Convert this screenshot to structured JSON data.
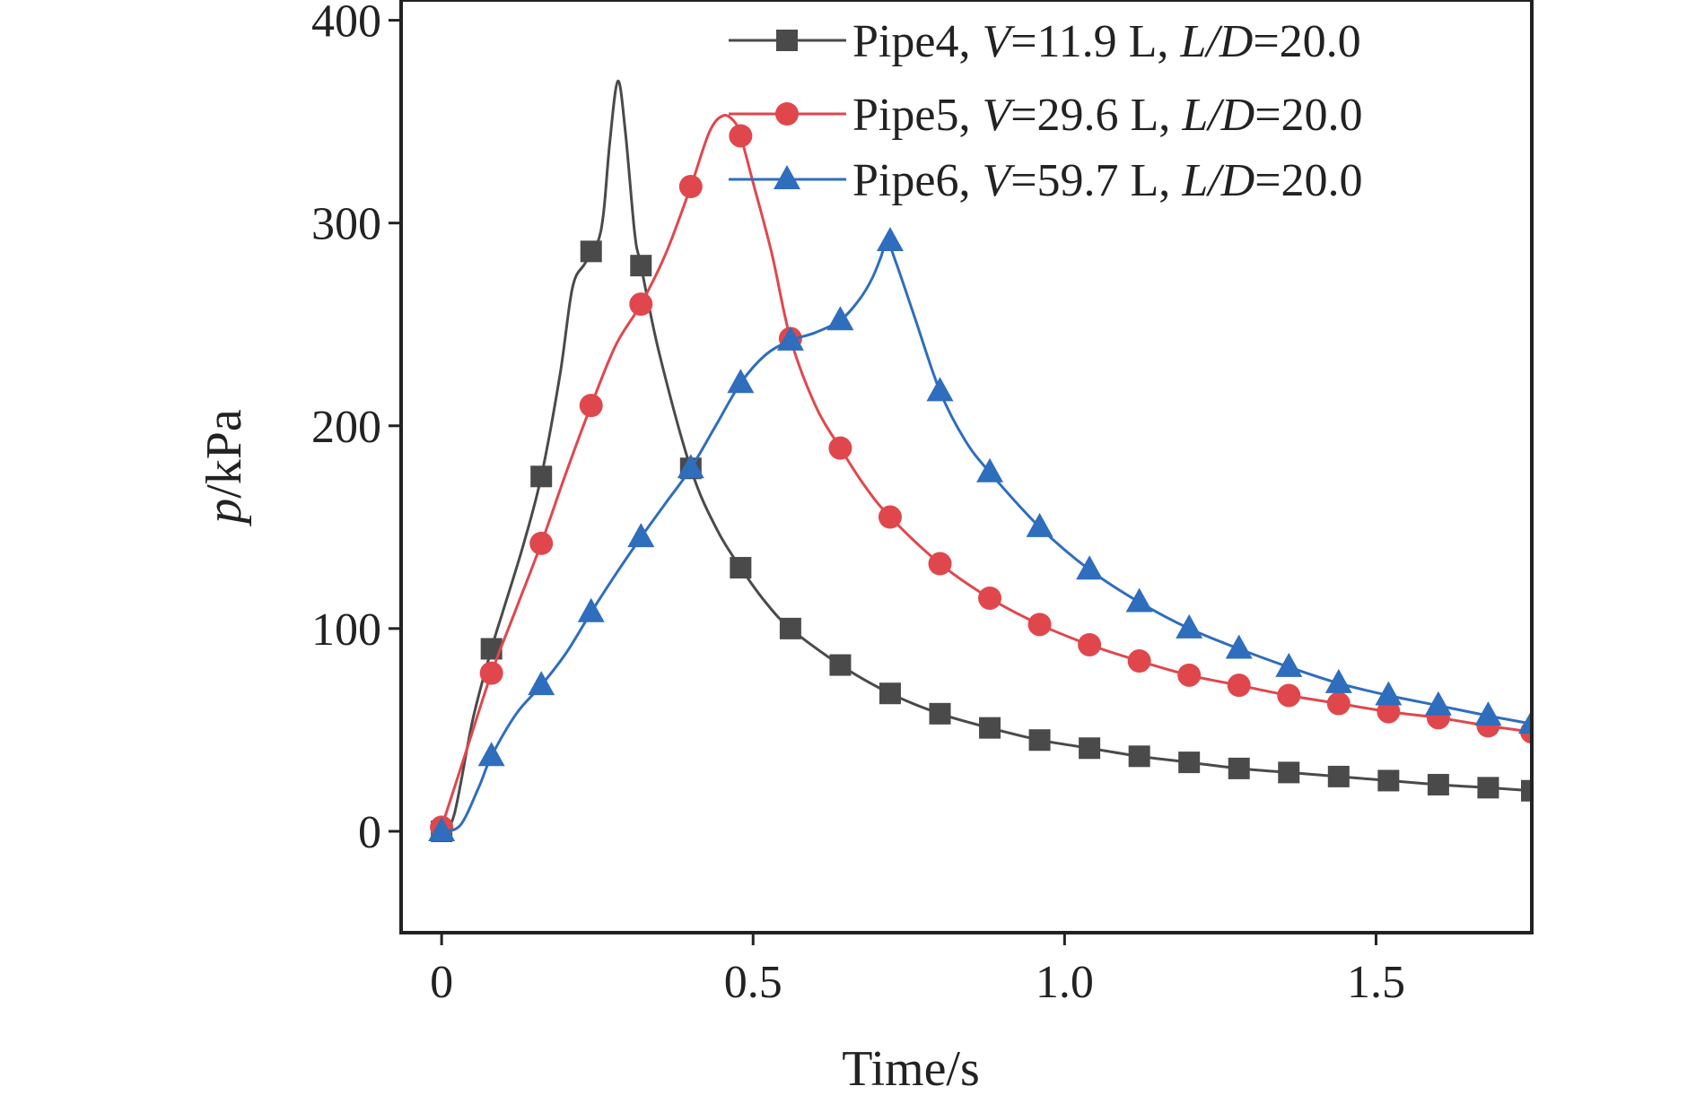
{
  "chart_data": {
    "type": "line",
    "xlabel": "Time/s",
    "ylabel_italic": "p",
    "ylabel_rest": "/kPa",
    "xlim": [
      -0.065,
      1.75
    ],
    "ylim": [
      -50,
      410
    ],
    "xticks": [
      0,
      0.5,
      1.0,
      1.5
    ],
    "xtick_labels": [
      "0",
      "0.5",
      "1.0",
      "1.5"
    ],
    "yticks": [
      0,
      100,
      200,
      300,
      400
    ],
    "ytick_labels": [
      "0",
      "100",
      "200",
      "300",
      "400"
    ],
    "grid": false,
    "legend_position": "top-right",
    "series": [
      {
        "name": "Pipe4, V=11.9 L, L/D=20.0",
        "legend": {
          "pipe": "Pipe4, ",
          "v_sym": "V",
          "v_val": "=11.9 L, ",
          "ld_sym": "L/D",
          "ld_val": "=20.0"
        },
        "color": "#4a4a4a",
        "marker": "square",
        "markers": [
          [
            0.0,
            0
          ],
          [
            0.08,
            90
          ],
          [
            0.16,
            175
          ],
          [
            0.24,
            286
          ],
          [
            0.32,
            279
          ],
          [
            0.4,
            179
          ],
          [
            0.48,
            130
          ],
          [
            0.56,
            100
          ],
          [
            0.64,
            82
          ],
          [
            0.72,
            68
          ],
          [
            0.8,
            58
          ],
          [
            0.88,
            51
          ],
          [
            0.96,
            45
          ],
          [
            1.04,
            41
          ],
          [
            1.12,
            37
          ],
          [
            1.2,
            34
          ],
          [
            1.28,
            31
          ],
          [
            1.36,
            29
          ],
          [
            1.44,
            27
          ],
          [
            1.52,
            25
          ],
          [
            1.6,
            23
          ],
          [
            1.68,
            21.5
          ],
          [
            1.75,
            20
          ]
        ],
        "curve": [
          [
            0.0,
            0
          ],
          [
            0.02,
            8
          ],
          [
            0.05,
            55
          ],
          [
            0.08,
            90
          ],
          [
            0.1,
            110
          ],
          [
            0.13,
            140
          ],
          [
            0.16,
            175
          ],
          [
            0.19,
            225
          ],
          [
            0.21,
            268
          ],
          [
            0.23,
            280
          ],
          [
            0.25,
            290
          ],
          [
            0.26,
            305
          ],
          [
            0.27,
            340
          ],
          [
            0.283,
            370
          ],
          [
            0.295,
            345
          ],
          [
            0.31,
            295
          ],
          [
            0.32,
            279
          ],
          [
            0.35,
            235
          ],
          [
            0.4,
            179
          ],
          [
            0.44,
            150
          ],
          [
            0.48,
            130
          ],
          [
            0.52,
            113
          ],
          [
            0.56,
            100
          ],
          [
            0.64,
            82
          ],
          [
            0.72,
            68
          ],
          [
            0.8,
            58
          ],
          [
            0.88,
            51
          ],
          [
            0.96,
            45
          ],
          [
            1.04,
            41
          ],
          [
            1.12,
            37
          ],
          [
            1.2,
            34
          ],
          [
            1.28,
            31
          ],
          [
            1.36,
            29
          ],
          [
            1.44,
            27
          ],
          [
            1.52,
            25
          ],
          [
            1.6,
            23
          ],
          [
            1.68,
            21.5
          ],
          [
            1.75,
            20
          ]
        ]
      },
      {
        "name": "Pipe5, V=29.6 L, L/D=20.0",
        "legend": {
          "pipe": "Pipe5, ",
          "v_sym": "V",
          "v_val": "=29.6 L, ",
          "ld_sym": "L/D",
          "ld_val": "=20.0"
        },
        "color": "#e0474c",
        "marker": "circle",
        "markers": [
          [
            0.0,
            2
          ],
          [
            0.08,
            78
          ],
          [
            0.16,
            142
          ],
          [
            0.24,
            210
          ],
          [
            0.32,
            260
          ],
          [
            0.4,
            318
          ],
          [
            0.48,
            343
          ],
          [
            0.56,
            243
          ],
          [
            0.64,
            189
          ],
          [
            0.72,
            155
          ],
          [
            0.8,
            132
          ],
          [
            0.88,
            115
          ],
          [
            0.96,
            102
          ],
          [
            1.04,
            92
          ],
          [
            1.12,
            84
          ],
          [
            1.2,
            77
          ],
          [
            1.28,
            72
          ],
          [
            1.36,
            67
          ],
          [
            1.44,
            63
          ],
          [
            1.52,
            59
          ],
          [
            1.6,
            56
          ],
          [
            1.68,
            52
          ],
          [
            1.75,
            49
          ]
        ],
        "curve": [
          [
            0.0,
            2
          ],
          [
            0.04,
            40
          ],
          [
            0.08,
            78
          ],
          [
            0.12,
            110
          ],
          [
            0.16,
            142
          ],
          [
            0.2,
            177
          ],
          [
            0.24,
            210
          ],
          [
            0.28,
            240
          ],
          [
            0.32,
            260
          ],
          [
            0.36,
            285
          ],
          [
            0.4,
            318
          ],
          [
            0.43,
            345
          ],
          [
            0.452,
            353
          ],
          [
            0.47,
            350
          ],
          [
            0.48,
            343
          ],
          [
            0.5,
            320
          ],
          [
            0.53,
            285
          ],
          [
            0.56,
            243
          ],
          [
            0.6,
            210
          ],
          [
            0.64,
            189
          ],
          [
            0.68,
            170
          ],
          [
            0.72,
            155
          ],
          [
            0.8,
            132
          ],
          [
            0.88,
            115
          ],
          [
            0.96,
            102
          ],
          [
            1.04,
            92
          ],
          [
            1.12,
            84
          ],
          [
            1.2,
            77
          ],
          [
            1.28,
            72
          ],
          [
            1.36,
            67
          ],
          [
            1.44,
            63
          ],
          [
            1.52,
            59
          ],
          [
            1.6,
            56
          ],
          [
            1.68,
            52
          ],
          [
            1.75,
            49
          ]
        ]
      },
      {
        "name": "Pipe6, V=59.7 L, L/D=20.0",
        "legend": {
          "pipe": "Pipe6, ",
          "v_sym": "V",
          "v_val": "=59.7 L, ",
          "ld_sym": "L/D",
          "ld_val": "=20.0"
        },
        "color": "#2f6dbd",
        "marker": "triangle",
        "markers": [
          [
            0.0,
            0
          ],
          [
            0.08,
            37
          ],
          [
            0.16,
            72
          ],
          [
            0.24,
            108
          ],
          [
            0.32,
            145
          ],
          [
            0.4,
            179
          ],
          [
            0.48,
            221
          ],
          [
            0.56,
            242
          ],
          [
            0.64,
            252
          ],
          [
            0.72,
            291
          ],
          [
            0.8,
            217
          ],
          [
            0.88,
            177
          ],
          [
            0.96,
            150
          ],
          [
            1.04,
            129
          ],
          [
            1.12,
            113
          ],
          [
            1.2,
            100
          ],
          [
            1.28,
            90
          ],
          [
            1.36,
            81
          ],
          [
            1.44,
            73
          ],
          [
            1.52,
            67
          ],
          [
            1.6,
            62
          ],
          [
            1.68,
            57
          ],
          [
            1.75,
            53
          ]
        ],
        "curve": [
          [
            0.0,
            0
          ],
          [
            0.03,
            3
          ],
          [
            0.06,
            22
          ],
          [
            0.08,
            37
          ],
          [
            0.12,
            58
          ],
          [
            0.16,
            72
          ],
          [
            0.2,
            88
          ],
          [
            0.24,
            108
          ],
          [
            0.28,
            127
          ],
          [
            0.32,
            145
          ],
          [
            0.36,
            162
          ],
          [
            0.4,
            179
          ],
          [
            0.44,
            200
          ],
          [
            0.48,
            221
          ],
          [
            0.52,
            235
          ],
          [
            0.56,
            242
          ],
          [
            0.6,
            246
          ],
          [
            0.64,
            252
          ],
          [
            0.67,
            262
          ],
          [
            0.69,
            272
          ],
          [
            0.705,
            283
          ],
          [
            0.715,
            291
          ],
          [
            0.73,
            280
          ],
          [
            0.76,
            253
          ],
          [
            0.8,
            217
          ],
          [
            0.84,
            193
          ],
          [
            0.88,
            177
          ],
          [
            0.96,
            150
          ],
          [
            1.04,
            129
          ],
          [
            1.12,
            113
          ],
          [
            1.2,
            100
          ],
          [
            1.28,
            90
          ],
          [
            1.36,
            81
          ],
          [
            1.44,
            73
          ],
          [
            1.52,
            67
          ],
          [
            1.6,
            62
          ],
          [
            1.68,
            57
          ],
          [
            1.75,
            53
          ]
        ]
      }
    ]
  }
}
